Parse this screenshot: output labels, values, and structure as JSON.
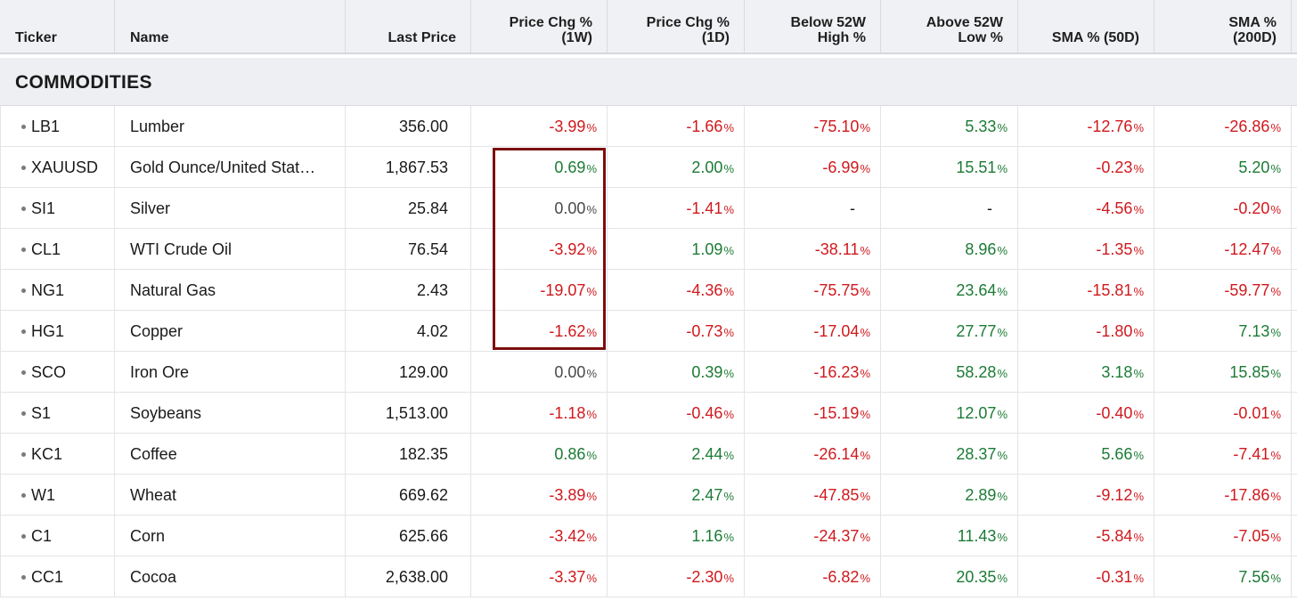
{
  "columns": [
    {
      "key": "ticker",
      "label": "Ticker"
    },
    {
      "key": "name",
      "label": "Name"
    },
    {
      "key": "last",
      "label": "Last Price"
    },
    {
      "key": "chg1w",
      "label": "Price Chg %\n(1W)"
    },
    {
      "key": "chg1d",
      "label": "Price Chg %\n(1D)"
    },
    {
      "key": "below52",
      "label": "Below 52W\nHigh %"
    },
    {
      "key": "above52",
      "label": "Above 52W\nLow %"
    },
    {
      "key": "sma50",
      "label": "SMA % (50D)"
    },
    {
      "key": "sma200",
      "label": "SMA %\n(200D)"
    }
  ],
  "section_title": "COMMODITIES",
  "percent_symbol": "%",
  "colors": {
    "negative": "#d0191d",
    "positive": "#1c7b35",
    "neutral": "#4a4a4a",
    "highlight": "#7d0e0e"
  },
  "rows": [
    {
      "ticker": "LB1",
      "name": "Lumber",
      "last": "356.00",
      "chg1w": "-3.99",
      "chg1d": "-1.66",
      "below52": "-75.10",
      "above52": "5.33",
      "sma50": "-12.76",
      "sma200": "-26.86"
    },
    {
      "ticker": "XAUUSD",
      "name": "Gold Ounce/United Stat…",
      "last": "1,867.53",
      "chg1w": "0.69",
      "chg1d": "2.00",
      "below52": "-6.99",
      "above52": "15.51",
      "sma50": "-0.23",
      "sma200": "5.20"
    },
    {
      "ticker": "SI1",
      "name": "Silver",
      "last": "25.84",
      "chg1w": "0.00",
      "chg1d": "-1.41",
      "below52": "-",
      "above52": "-",
      "sma50": "-4.56",
      "sma200": "-0.20"
    },
    {
      "ticker": "CL1",
      "name": "WTI Crude Oil",
      "last": "76.54",
      "chg1w": "-3.92",
      "chg1d": "1.09",
      "below52": "-38.11",
      "above52": "8.96",
      "sma50": "-1.35",
      "sma200": "-12.47"
    },
    {
      "ticker": "NG1",
      "name": "Natural Gas",
      "last": "2.43",
      "chg1w": "-19.07",
      "chg1d": "-4.36",
      "below52": "-75.75",
      "above52": "23.64",
      "sma50": "-15.81",
      "sma200": "-59.77"
    },
    {
      "ticker": "HG1",
      "name": "Copper",
      "last": "4.02",
      "chg1w": "-1.62",
      "chg1d": "-0.73",
      "below52": "-17.04",
      "above52": "27.77",
      "sma50": "-1.80",
      "sma200": "7.13"
    },
    {
      "ticker": "SCO",
      "name": "Iron Ore",
      "last": "129.00",
      "chg1w": "0.00",
      "chg1d": "0.39",
      "below52": "-16.23",
      "above52": "58.28",
      "sma50": "3.18",
      "sma200": "15.85"
    },
    {
      "ticker": "S1",
      "name": "Soybeans",
      "last": "1,513.00",
      "chg1w": "-1.18",
      "chg1d": "-0.46",
      "below52": "-15.19",
      "above52": "12.07",
      "sma50": "-0.40",
      "sma200": "-0.01"
    },
    {
      "ticker": "KC1",
      "name": "Coffee",
      "last": "182.35",
      "chg1w": "0.86",
      "chg1d": "2.44",
      "below52": "-26.14",
      "above52": "28.37",
      "sma50": "5.66",
      "sma200": "-7.41"
    },
    {
      "ticker": "W1",
      "name": "Wheat",
      "last": "669.62",
      "chg1w": "-3.89",
      "chg1d": "2.47",
      "below52": "-47.85",
      "above52": "2.89",
      "sma50": "-9.12",
      "sma200": "-17.86"
    },
    {
      "ticker": "C1",
      "name": "Corn",
      "last": "625.66",
      "chg1w": "-3.42",
      "chg1d": "1.16",
      "below52": "-24.37",
      "above52": "11.43",
      "sma50": "-5.84",
      "sma200": "-7.05"
    },
    {
      "ticker": "CC1",
      "name": "Cocoa",
      "last": "2,638.00",
      "chg1w": "-3.37",
      "chg1d": "-2.30",
      "below52": "-6.82",
      "above52": "20.35",
      "sma50": "-0.31",
      "sma200": "7.56"
    }
  ]
}
